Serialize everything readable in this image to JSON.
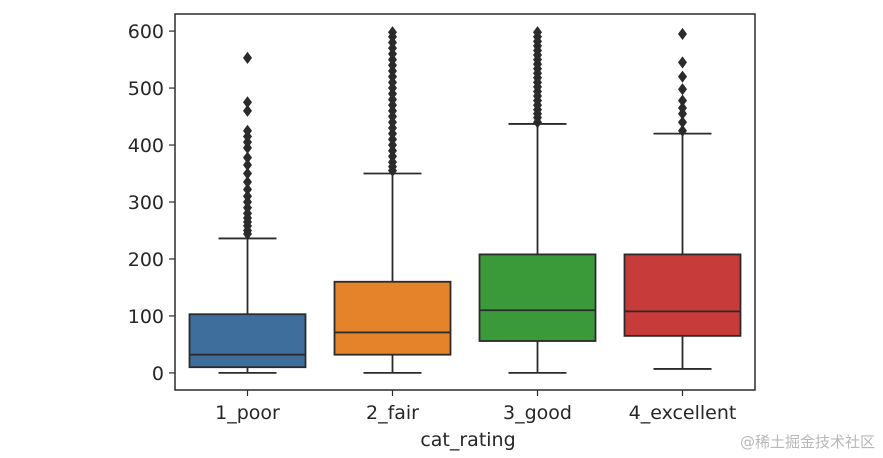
{
  "chart_data": {
    "type": "boxplot",
    "title": "",
    "xlabel": "cat_rating",
    "ylabel": "",
    "ylim": [
      -30,
      630
    ],
    "yticks": [
      0,
      100,
      200,
      300,
      400,
      500,
      600
    ],
    "categories": [
      "1_poor",
      "2_fair",
      "3_good",
      "4_excellent"
    ],
    "colors": [
      "#3d6e9c",
      "#e5832a",
      "#3a9a3a",
      "#c83b3b"
    ],
    "line_color": "#2b2b2b",
    "series": [
      {
        "name": "1_poor",
        "whisker_low": 0,
        "q1": 10,
        "median": 32,
        "q3": 103,
        "whisker_high": 236,
        "outliers": [
          244,
          250,
          258,
          265,
          272,
          280,
          290,
          300,
          310,
          322,
          335,
          350,
          365,
          378,
          395,
          405,
          415,
          425,
          460,
          475,
          553
        ]
      },
      {
        "name": "2_fair",
        "whisker_low": 0,
        "q1": 32,
        "median": 71,
        "q3": 160,
        "whisker_high": 350,
        "outliers": [
          355,
          362,
          370,
          380,
          390,
          400,
          410,
          420,
          430,
          440,
          450,
          460,
          470,
          480,
          490,
          500,
          510,
          520,
          530,
          540,
          550,
          560,
          570,
          580,
          590,
          598
        ]
      },
      {
        "name": "3_good",
        "whisker_low": 0,
        "q1": 56,
        "median": 110,
        "q3": 208,
        "whisker_high": 437,
        "outliers": [
          440,
          448,
          455,
          462,
          470,
          478,
          486,
          494,
          502,
          510,
          518,
          526,
          534,
          542,
          550,
          558,
          566,
          574,
          582,
          590,
          598
        ]
      },
      {
        "name": "4_excellent",
        "whisker_low": 7,
        "q1": 65,
        "median": 108,
        "q3": 208,
        "whisker_high": 420,
        "outliers": [
          425,
          440,
          455,
          465,
          478,
          498,
          520,
          545,
          595
        ]
      }
    ]
  },
  "watermark": "@稀土掘金技术社区"
}
